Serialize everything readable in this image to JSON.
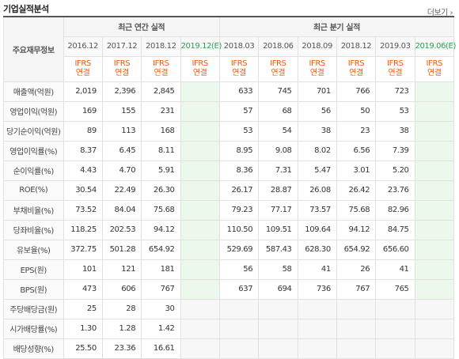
{
  "header": {
    "title": "기업실적분석",
    "more_label": "더보기 ›"
  },
  "table": {
    "main_label": "주요재무정보",
    "annual_group": "최근 연간 실적",
    "quarter_group": "최근 분기 실적",
    "annual_dates": [
      "2016.12",
      "2017.12",
      "2018.12",
      "2019.12(E)"
    ],
    "quarter_dates": [
      "2018.03",
      "2018.06",
      "2018.09",
      "2018.12",
      "2019.03",
      "2019.06(E)"
    ],
    "ifrs_line1": "IFRS",
    "ifrs_line2": "연결",
    "rows": [
      {
        "label": "매출액(억원)",
        "annual": [
          "2,019",
          "2,396",
          "2,845",
          ""
        ],
        "quarter": [
          "633",
          "745",
          "701",
          "766",
          "723",
          ""
        ]
      },
      {
        "label": "영업이익(억원)",
        "annual": [
          "169",
          "155",
          "231",
          ""
        ],
        "quarter": [
          "57",
          "68",
          "56",
          "50",
          "53",
          ""
        ]
      },
      {
        "label": "당기순이익(억원)",
        "annual": [
          "89",
          "113",
          "168",
          ""
        ],
        "quarter": [
          "53",
          "54",
          "38",
          "23",
          "38",
          ""
        ]
      },
      {
        "label": "영업이익률(%)",
        "annual": [
          "8.37",
          "6.45",
          "8.11",
          ""
        ],
        "quarter": [
          "8.95",
          "9.08",
          "8.02",
          "6.56",
          "7.39",
          ""
        ]
      },
      {
        "label": "순이익률(%)",
        "annual": [
          "4.43",
          "4.70",
          "5.91",
          ""
        ],
        "quarter": [
          "8.36",
          "7.31",
          "5.47",
          "3.01",
          "5.20",
          ""
        ]
      },
      {
        "label": "ROE(%)",
        "annual": [
          "30.54",
          "22.49",
          "26.30",
          ""
        ],
        "quarter": [
          "26.17",
          "28.87",
          "26.08",
          "26.42",
          "23.76",
          ""
        ]
      },
      {
        "label": "부채비율(%)",
        "annual": [
          "73.52",
          "84.04",
          "75.68",
          ""
        ],
        "quarter": [
          "79.23",
          "77.17",
          "73.57",
          "75.68",
          "82.96",
          ""
        ]
      },
      {
        "label": "당좌비율(%)",
        "annual": [
          "118.25",
          "202.53",
          "94.12",
          ""
        ],
        "quarter": [
          "110.50",
          "109.51",
          "109.64",
          "94.12",
          "84.75",
          ""
        ]
      },
      {
        "label": "유보율(%)",
        "annual": [
          "372.75",
          "501.28",
          "654.92",
          ""
        ],
        "quarter": [
          "529.69",
          "587.43",
          "628.30",
          "654.92",
          "656.60",
          ""
        ]
      },
      {
        "label": "EPS(원)",
        "annual": [
          "101",
          "121",
          "181",
          ""
        ],
        "quarter": [
          "56",
          "58",
          "41",
          "26",
          "41",
          ""
        ]
      },
      {
        "label": "BPS(원)",
        "annual": [
          "473",
          "606",
          "767",
          ""
        ],
        "quarter": [
          "637",
          "694",
          "736",
          "767",
          "765",
          ""
        ]
      },
      {
        "label": "주당배당금(원)",
        "annual": [
          "25",
          "28",
          "30",
          ""
        ],
        "quarter": [
          "",
          "",
          "",
          "",
          "",
          ""
        ]
      },
      {
        "label": "시가배당률(%)",
        "annual": [
          "1.30",
          "1.28",
          "1.42",
          ""
        ],
        "quarter": [
          "",
          "",
          "",
          "",
          "",
          ""
        ]
      },
      {
        "label": "배당성향(%)",
        "annual": [
          "25.50",
          "23.36",
          "16.61",
          ""
        ],
        "quarter": [
          "",
          "",
          "",
          "",
          "",
          ""
        ]
      }
    ]
  },
  "colors": {
    "ifrs": "#ff5500",
    "estimate_bg": "#edf8ec",
    "estimate_text": "#2b9e4b"
  }
}
